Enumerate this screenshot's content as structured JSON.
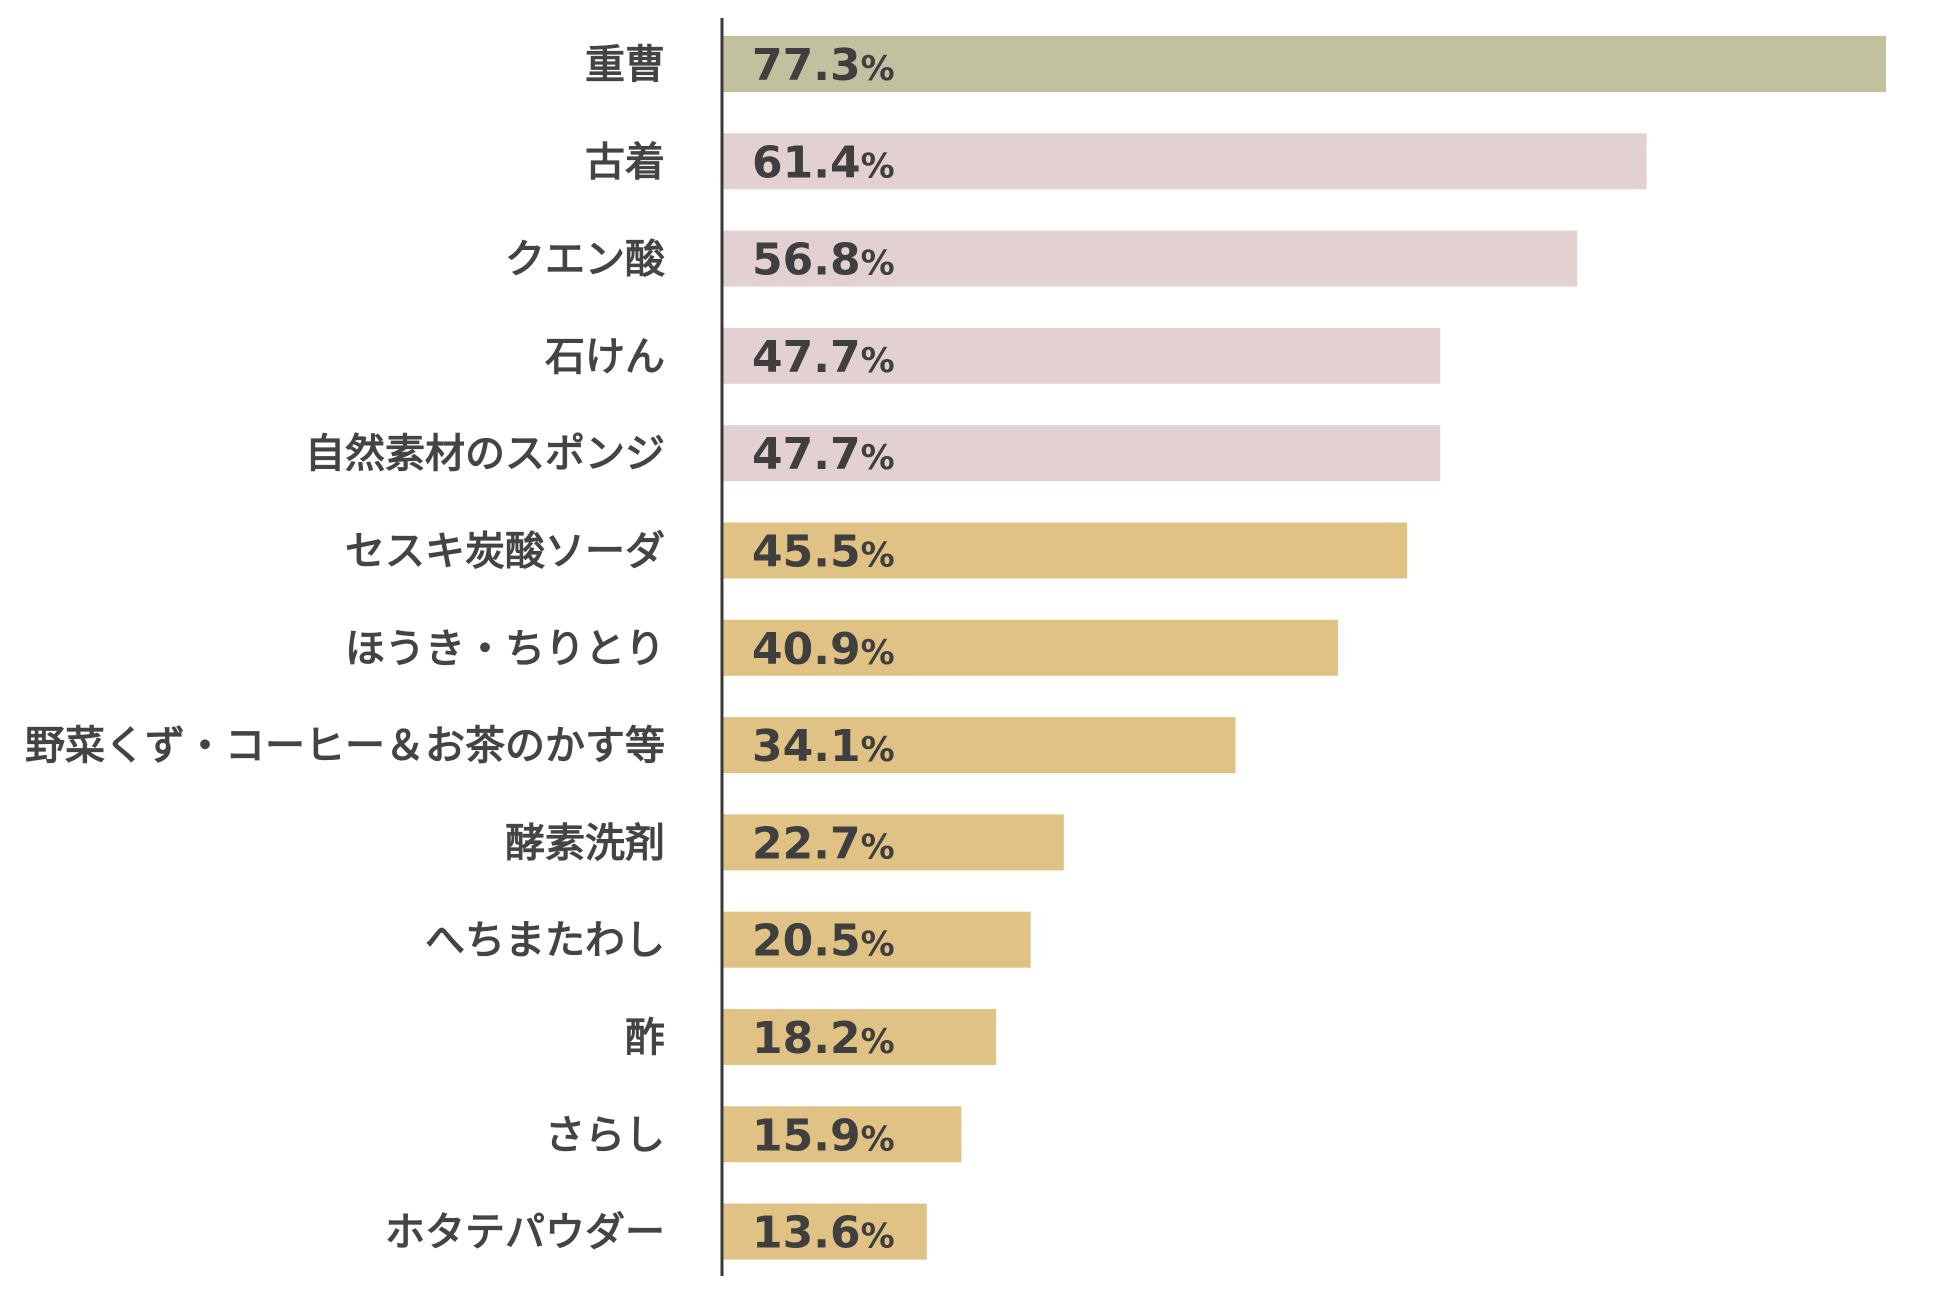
{
  "chart_data": {
    "type": "bar",
    "orientation": "horizontal",
    "categories": [
      "重曹",
      "古着",
      "クエン酸",
      "石けん",
      "自然素材のスポンジ",
      "セスキ炭酸ソーダ",
      "ほうき・ちりとり",
      "野菜くず・コーヒー＆お茶のかす等",
      "酵素洗剤",
      "へちまたわし",
      "酢",
      "さらし",
      "ホタテパウダー"
    ],
    "values": [
      77.3,
      61.4,
      56.8,
      47.7,
      47.7,
      45.5,
      40.9,
      34.1,
      22.7,
      20.5,
      18.2,
      15.9,
      13.6
    ],
    "value_labels": [
      "77.3",
      "61.4",
      "56.8",
      "47.7",
      "47.7",
      "45.5",
      "40.9",
      "34.1",
      "22.7",
      "20.5",
      "18.2",
      "15.9",
      "13.6"
    ],
    "unit": "%",
    "bar_colors": [
      "#c1c1a0",
      "#e3d1d2",
      "#e3d1d2",
      "#e3d1d2",
      "#e3d1d2",
      "#e0c384",
      "#e0c384",
      "#e0c384",
      "#e0c384",
      "#e0c384",
      "#e0c384",
      "#e0c384",
      "#e0c384"
    ],
    "axis_color": "#3a3a3a",
    "xlim": [
      0,
      77.3
    ],
    "grid": false,
    "legend": "none"
  }
}
